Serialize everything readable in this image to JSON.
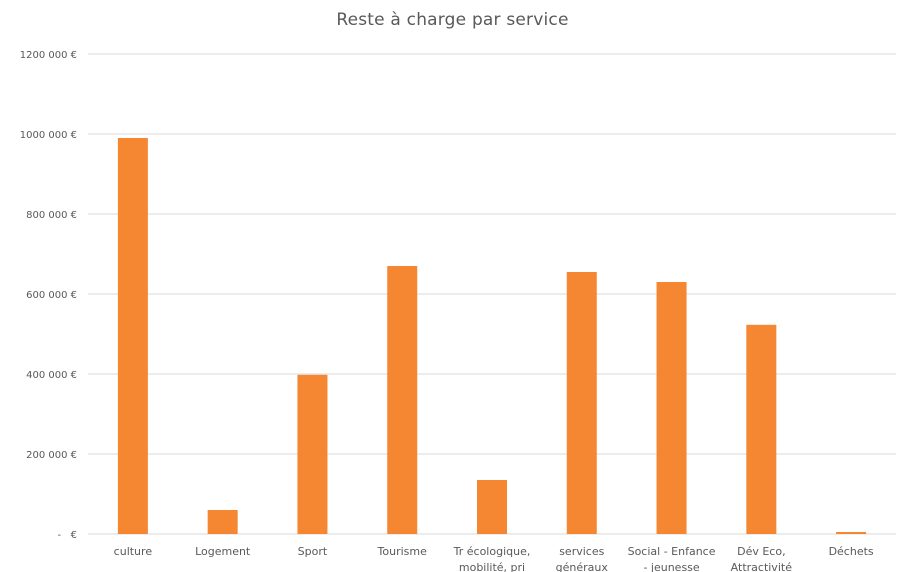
{
  "chart_data": {
    "type": "bar",
    "title": "Reste à charge  par service",
    "xlabel": "",
    "ylabel": "",
    "categories": [
      "culture",
      "Logement",
      "Sport",
      "Tourisme",
      "Tr écologique, mobilité, pri",
      "services généraux",
      "Social - Enfance - jeunesse",
      "Dév Eco, Attractivité",
      "Déchets"
    ],
    "category_lines": [
      [
        "culture"
      ],
      [
        "Logement"
      ],
      [
        "Sport"
      ],
      [
        "Tourisme"
      ],
      [
        "Tr écologique,",
        "mobilité, pri"
      ],
      [
        "services",
        "généraux"
      ],
      [
        "Social - Enfance",
        "- jeunesse"
      ],
      [
        "Dév Eco,",
        "Attractivité"
      ],
      [
        "Déchets"
      ]
    ],
    "values": [
      990000,
      60000,
      398000,
      670000,
      135000,
      655000,
      630000,
      523000,
      5000
    ],
    "ylim": [
      0,
      1200000
    ],
    "yticks": [
      0,
      200000,
      400000,
      600000,
      800000,
      1000000,
      1200000
    ],
    "ytick_labels": [
      "-   €",
      "200 000 €",
      "400 000 €",
      "600 000 €",
      "800 000 €",
      "1000 000 €",
      "1200 000 €"
    ],
    "grid": true,
    "legend": "none",
    "bar_color": "#F58733",
    "grid_color": "#D9D9D9",
    "text_color": "#595959"
  }
}
